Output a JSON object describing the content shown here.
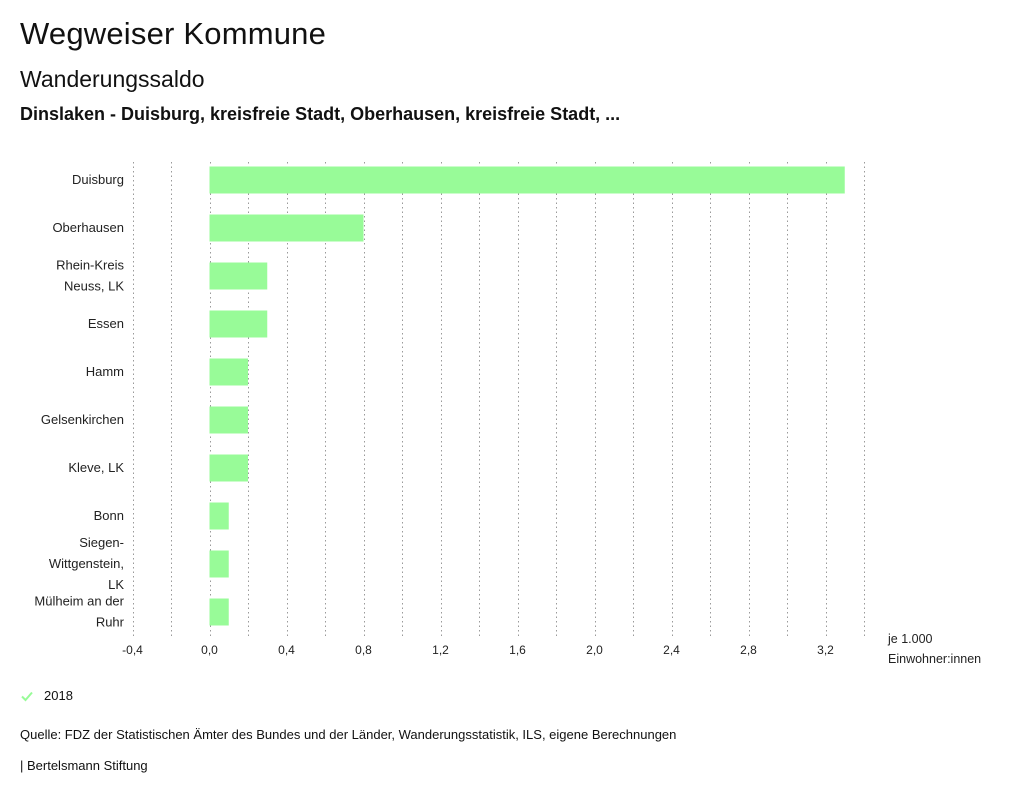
{
  "header": {
    "title": "Wegweiser Kommune",
    "subtitle": "Wanderungssaldo",
    "region": "Dinslaken - Duisburg, kreisfreie Stadt, Oberhausen, kreisfreie Stadt, ..."
  },
  "chart_data": {
    "type": "bar",
    "orientation": "horizontal",
    "title": "Wanderungssaldo",
    "categories": [
      [
        "Duisburg"
      ],
      [
        "Oberhausen"
      ],
      [
        "Rhein-Kreis",
        "Neuss, LK"
      ],
      [
        "Essen"
      ],
      [
        "Hamm"
      ],
      [
        "Gelsenkirchen"
      ],
      [
        "Kleve, LK"
      ],
      [
        "Bonn"
      ],
      [
        "Siegen-",
        "Wittgenstein,",
        "LK"
      ],
      [
        "Mülheim an der",
        "Ruhr"
      ]
    ],
    "series": [
      {
        "name": "2018",
        "color": "#98fb98",
        "values": [
          3.3,
          0.8,
          0.3,
          0.3,
          0.2,
          0.2,
          0.2,
          0.1,
          0.1,
          0.1
        ]
      }
    ],
    "xlim": [
      -0.4,
      3.4
    ],
    "ticks": [
      -0.4,
      0.0,
      0.4,
      0.8,
      1.2,
      1.6,
      2.0,
      2.4,
      2.8,
      3.2
    ],
    "tick_labels": [
      "-0,4",
      "0,0",
      "0,4",
      "0,8",
      "1,2",
      "1,6",
      "2,0",
      "2,4",
      "2,8",
      "3,2"
    ],
    "xlabel": [
      "je 1.000",
      "Einwohner:innen"
    ],
    "grid": "vertical dotted"
  },
  "legend": {
    "label": "2018",
    "color": "#98fb98"
  },
  "footer": {
    "source": "Quelle: FDZ der Statistischen Ämter des Bundes und der Länder, Wanderungsstatistik, ILS, eigene Berechnungen",
    "publisher": "| Bertelsmann Stiftung"
  }
}
